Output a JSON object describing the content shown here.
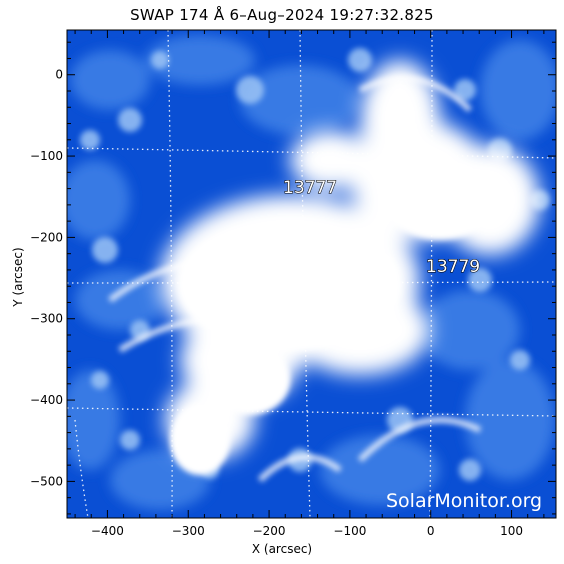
{
  "image": {
    "title": "SWAP 174 Å  6–Aug–2024 19:27:32.825",
    "xlabel": "X (arcsec)",
    "ylabel": "Y (arcsec)",
    "watermark": "SolarMonitor.org",
    "x_range_arcsec": [
      -450,
      155
    ],
    "y_range_arcsec": [
      -545,
      55
    ],
    "x_ticks": [
      -400,
      -300,
      -200,
      -100,
      0,
      100
    ],
    "y_ticks": [
      0,
      -100,
      -200,
      -300,
      -400,
      -500
    ],
    "x_tick_labels": [
      "−400",
      "−300",
      "−200",
      "−100",
      "0",
      "100"
    ],
    "y_tick_labels": [
      "0",
      "−100",
      "−200",
      "−300",
      "−400",
      "−500"
    ],
    "colors": {
      "background": "#ffffff",
      "deep_blue": "#0a4fd4",
      "mid_blue": "#3d7fe6",
      "light_blue": "#9cc4f5",
      "bright": "#ffffff",
      "grid_dots": "#ffffff"
    },
    "active_regions": [
      {
        "id": "13777",
        "label": "13777",
        "x": -175,
        "y": -140
      },
      {
        "id": "13779",
        "label": "13779",
        "x": 0,
        "y": -230
      }
    ]
  }
}
